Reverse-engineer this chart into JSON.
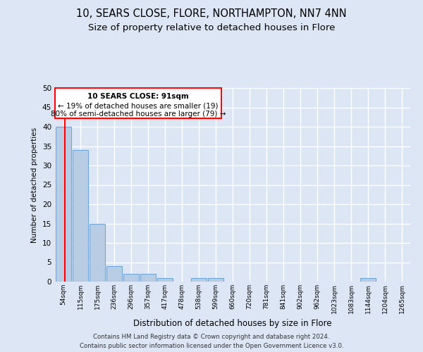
{
  "title": "10, SEARS CLOSE, FLORE, NORTHAMPTON, NN7 4NN",
  "subtitle": "Size of property relative to detached houses in Flore",
  "xlabel": "Distribution of detached houses by size in Flore",
  "ylabel": "Number of detached properties",
  "bin_labels": [
    "54sqm",
    "115sqm",
    "175sqm",
    "236sqm",
    "296sqm",
    "357sqm",
    "417sqm",
    "478sqm",
    "538sqm",
    "599sqm",
    "660sqm",
    "720sqm",
    "781sqm",
    "841sqm",
    "902sqm",
    "962sqm",
    "1023sqm",
    "1083sqm",
    "1144sqm",
    "1204sqm",
    "1265sqm"
  ],
  "bar_values": [
    40,
    34,
    15,
    4,
    2,
    2,
    1,
    0,
    1,
    1,
    0,
    0,
    0,
    0,
    0,
    0,
    0,
    0,
    1,
    0,
    0
  ],
  "bar_color": "#b8cce4",
  "bar_edge_color": "#6fa8dc",
  "ylim": [
    0,
    50
  ],
  "yticks": [
    0,
    5,
    10,
    15,
    20,
    25,
    30,
    35,
    40,
    45,
    50
  ],
  "annotation_line1": "10 SEARS CLOSE: 91sqm",
  "annotation_line2": "← 19% of detached houses are smaller (19)",
  "annotation_line3": "80% of semi-detached houses are larger (79) →",
  "footer_line1": "Contains HM Land Registry data © Crown copyright and database right 2024.",
  "footer_line2": "Contains public sector information licensed under the Open Government Licence v3.0.",
  "background_color": "#dce6f5",
  "grid_color": "#ffffff",
  "title_fontsize": 10.5,
  "subtitle_fontsize": 9.5
}
